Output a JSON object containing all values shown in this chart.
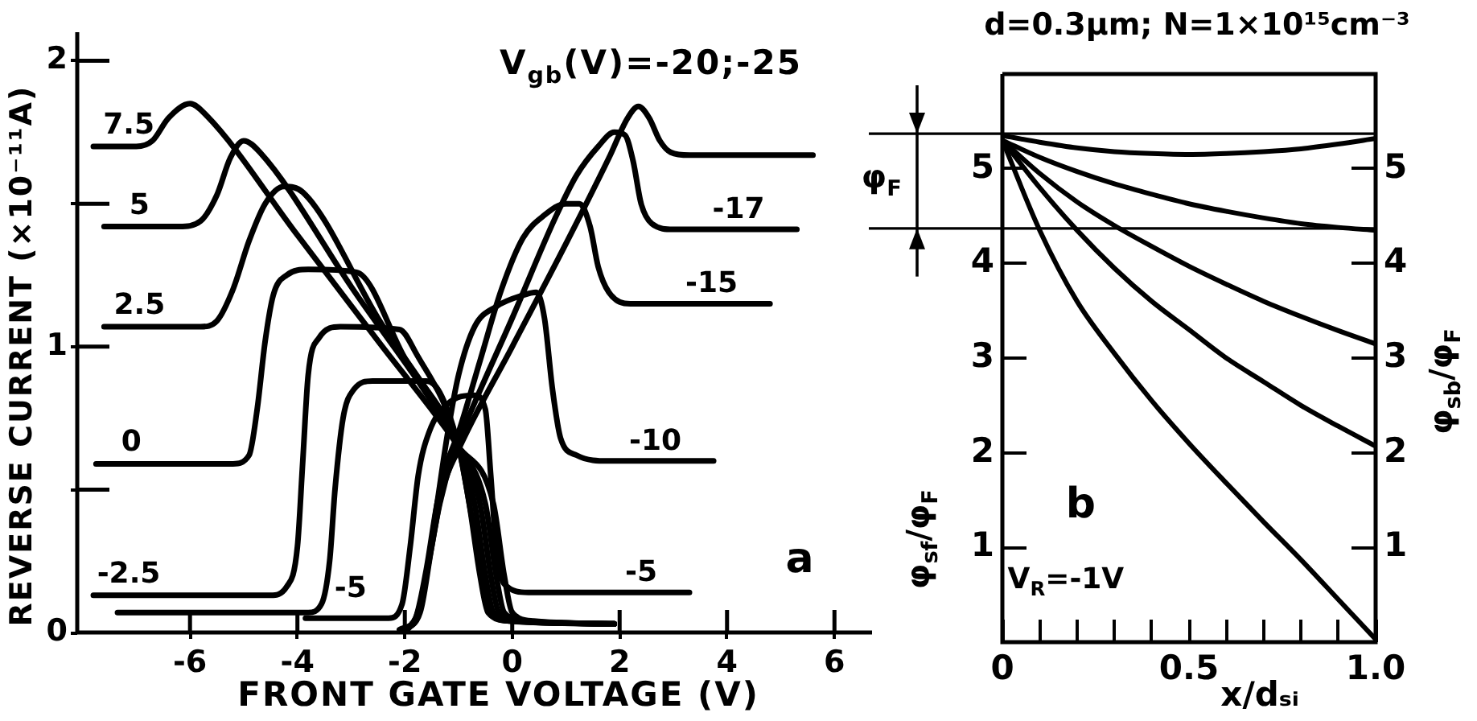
{
  "chart_data": [
    {
      "type": "line",
      "xlabel": "FRONT GATE VOLTAGE (V)",
      "ylabel": "REVERSE CURRENT (×10⁻¹¹A)",
      "xlim": [
        -8.1,
        6.7
      ],
      "ylim": [
        0,
        2.1
      ],
      "xticks": [
        -6,
        -4,
        -2,
        0,
        2,
        4,
        6
      ],
      "yticks": [
        0,
        {
          "value": 0.5,
          "label": null
        },
        1,
        {
          "value": 1.5,
          "label": null
        },
        2
      ],
      "annotations": [
        {
          "text": "V$_{gb}$(V)=-20;-25",
          "x": 2.34,
          "y": 1.84
        },
        {
          "text": "-5",
          "x": -3.85,
          "y": 0.05
        },
        "a"
      ],
      "series": [
        {
          "name": "7.5",
          "color": "#000000",
          "x": [
            -7.8,
            -7.0,
            -6.7,
            -6.4,
            -6.0,
            -5.7,
            -4.0,
            -2.5,
            -1.0,
            -0.35,
            -0.15,
            0.0,
            0.4,
            1.9
          ],
          "values": [
            1.7,
            1.7,
            1.72,
            1.8,
            1.85,
            1.81,
            1.39,
            1.02,
            0.65,
            0.45,
            0.2,
            0.07,
            0.04,
            0.03
          ]
        },
        {
          "name": "5",
          "color": "#000000",
          "x": [
            -7.6,
            -6.2,
            -5.8,
            -5.5,
            -5.25,
            -5.0,
            -4.7,
            -3.0,
            -1.0,
            -0.5,
            -0.3,
            -0.15,
            0.25,
            1.9
          ],
          "values": [
            1.42,
            1.42,
            1.44,
            1.53,
            1.66,
            1.72,
            1.68,
            1.21,
            0.65,
            0.45,
            0.2,
            0.07,
            0.04,
            0.03
          ]
        },
        {
          "name": "2.5",
          "color": "#000000",
          "x": [
            -7.6,
            -5.8,
            -5.5,
            -5.2,
            -4.9,
            -4.6,
            -4.25,
            -3.9,
            -2.5,
            -1.0,
            -0.6,
            -0.4,
            -0.25,
            0.15,
            1.9
          ],
          "values": [
            1.07,
            1.07,
            1.09,
            1.2,
            1.37,
            1.5,
            1.56,
            1.54,
            1.1,
            0.65,
            0.45,
            0.2,
            0.07,
            0.04,
            0.03
          ]
        },
        {
          "name": "0",
          "color": "#000000",
          "x": [
            -7.75,
            -5.2,
            -4.9,
            -4.75,
            -4.6,
            -4.45,
            -4.2,
            -3.8,
            -2.9,
            -2.0,
            -1.0,
            -0.7,
            -0.5,
            -0.35,
            0.05,
            1.9
          ],
          "values": [
            0.59,
            0.59,
            0.62,
            0.78,
            1.02,
            1.18,
            1.25,
            1.27,
            1.26,
            0.96,
            0.65,
            0.45,
            0.2,
            0.07,
            0.04,
            0.03
          ]
        },
        {
          "name": "-2.5",
          "color": "#000000",
          "x": [
            -7.8,
            -4.5,
            -4.2,
            -4.0,
            -3.9,
            -3.8,
            -3.6,
            -3.2,
            -2.1,
            -1.8,
            -1.0,
            -0.8,
            -0.6,
            -0.45,
            -0.05,
            1.9
          ],
          "values": [
            0.13,
            0.13,
            0.16,
            0.3,
            0.6,
            0.9,
            1.03,
            1.07,
            1.06,
            0.98,
            0.65,
            0.45,
            0.2,
            0.07,
            0.04,
            0.03
          ]
        },
        {
          "color": "#000000",
          "x": [
            -7.35,
            -3.8,
            -3.55,
            -3.4,
            -3.3,
            -3.15,
            -2.95,
            -2.6,
            -1.6,
            -1.35,
            -1.0,
            -0.75,
            -0.55,
            -0.4,
            -0.05,
            1.9
          ],
          "values": [
            0.07,
            0.07,
            0.1,
            0.25,
            0.5,
            0.75,
            0.85,
            0.88,
            0.88,
            0.84,
            0.65,
            0.4,
            0.19,
            0.07,
            0.04,
            0.03
          ]
        },
        {
          "name": "-5",
          "color": "#000000",
          "x": [
            -3.85,
            -2.3,
            -2.05,
            -1.9,
            -1.75,
            -1.55,
            -1.2,
            -0.7,
            -0.5,
            -0.4,
            -0.3,
            -0.15,
            0.3,
            3.3
          ],
          "values": [
            0.05,
            0.05,
            0.1,
            0.3,
            0.55,
            0.7,
            0.8,
            0.83,
            0.78,
            0.55,
            0.3,
            0.17,
            0.14,
            0.14
          ]
        },
        {
          "name": "-10",
          "color": "#000000",
          "x": [
            -2.1,
            -1.8,
            -1.6,
            -1.4,
            -1.2,
            -1.0,
            -0.7,
            -0.3,
            0.2,
            0.45,
            0.6,
            0.75,
            0.9,
            1.2,
            1.8,
            3.75
          ],
          "values": [
            0.01,
            0.05,
            0.2,
            0.45,
            0.7,
            0.9,
            1.07,
            1.14,
            1.18,
            1.19,
            1.1,
            0.85,
            0.68,
            0.62,
            0.6,
            0.6
          ]
        },
        {
          "name": "-15",
          "color": "#000000",
          "x": [
            -2.05,
            -1.8,
            -1.6,
            -1.4,
            -1.2,
            -1.0,
            -0.6,
            -0.2,
            0.2,
            0.6,
            1.0,
            1.25,
            1.45,
            1.6,
            1.8,
            2.2,
            4.8
          ],
          "values": [
            0.01,
            0.05,
            0.22,
            0.45,
            0.6,
            0.7,
            0.95,
            1.2,
            1.38,
            1.46,
            1.5,
            1.5,
            1.42,
            1.28,
            1.19,
            1.15,
            1.15
          ]
        },
        {
          "name": "-17",
          "color": "#000000",
          "x": [
            -2.0,
            -1.75,
            -1.55,
            -1.35,
            -1.1,
            -0.8,
            0.0,
            0.8,
            1.2,
            1.6,
            1.9,
            2.1,
            2.25,
            2.4,
            2.6,
            3.0,
            5.3
          ],
          "values": [
            0.01,
            0.06,
            0.25,
            0.45,
            0.62,
            0.76,
            1.1,
            1.45,
            1.6,
            1.7,
            1.75,
            1.74,
            1.65,
            1.5,
            1.43,
            1.41,
            1.41
          ]
        },
        {
          "color": "#000000",
          "x": [
            -1.95,
            -1.7,
            -1.5,
            -1.3,
            -1.0,
            0.0,
            1.0,
            1.8,
            2.15,
            2.35,
            2.55,
            2.75,
            2.95,
            3.3,
            5.6
          ],
          "values": [
            0.01,
            0.08,
            0.3,
            0.5,
            0.64,
            1.0,
            1.36,
            1.66,
            1.8,
            1.84,
            1.8,
            1.72,
            1.68,
            1.67,
            1.67
          ]
        }
      ]
    },
    {
      "type": "line",
      "title": "d=0.3μm; N=1×10¹⁵cm⁻³",
      "xlabel": "x/dₛᵢ",
      "ylabel": "φ$_{sf}$/φ$_{F}$",
      "y2label": "φ$_{sb}$/φ$_{F}$",
      "x": [
        0,
        0.1,
        0.2,
        0.3,
        0.4,
        0.5,
        0.6,
        0.7,
        0.8,
        0.9,
        1.0
      ],
      "xlim": [
        0,
        1
      ],
      "ylim": [
        0,
        6
      ],
      "y2lim": [
        0,
        6
      ],
      "xticks": [
        0,
        {
          "value": 0.1,
          "label": null
        },
        {
          "value": 0.2,
          "label": null
        },
        {
          "value": 0.3,
          "label": null
        },
        {
          "value": 0.4,
          "label": null
        },
        0.5,
        {
          "value": 0.6,
          "label": null
        },
        {
          "value": 0.7,
          "label": null
        },
        {
          "value": 0.8,
          "label": null
        },
        {
          "value": 0.9,
          "label": null
        },
        {
          "value": 1,
          "label": "1.0"
        }
      ],
      "yticks": [
        1,
        2,
        3,
        4,
        5
      ],
      "y2ticks": [
        1,
        2,
        3,
        4,
        5
      ],
      "ref_lines": [
        {
          "axis": "y",
          "value": 5.37
        },
        {
          "axis": "y",
          "value": 4.37
        }
      ],
      "annotations": [
        "φ$_{F}$",
        "b",
        "V$_{R}$=-1V"
      ],
      "series": [
        {
          "color": "#000000",
          "values": [
            5.35,
            5.28,
            5.22,
            5.18,
            5.16,
            5.15,
            5.16,
            5.18,
            5.21,
            5.26,
            5.32
          ]
        },
        {
          "color": "#000000",
          "values": [
            5.3,
            5.12,
            4.97,
            4.84,
            4.73,
            4.63,
            4.55,
            4.48,
            4.42,
            4.38,
            4.35
          ]
        },
        {
          "color": "#000000",
          "values": [
            5.3,
            4.95,
            4.65,
            4.4,
            4.18,
            3.97,
            3.78,
            3.6,
            3.44,
            3.29,
            3.15
          ]
        },
        {
          "color": "#000000",
          "values": [
            5.3,
            4.8,
            4.35,
            3.95,
            3.6,
            3.3,
            3.0,
            2.75,
            2.5,
            2.28,
            2.07
          ]
        },
        {
          "color": "#000000",
          "values": [
            5.3,
            4.35,
            3.6,
            3.05,
            2.55,
            2.1,
            1.68,
            1.27,
            0.87,
            0.45,
            0.03
          ]
        }
      ]
    }
  ]
}
